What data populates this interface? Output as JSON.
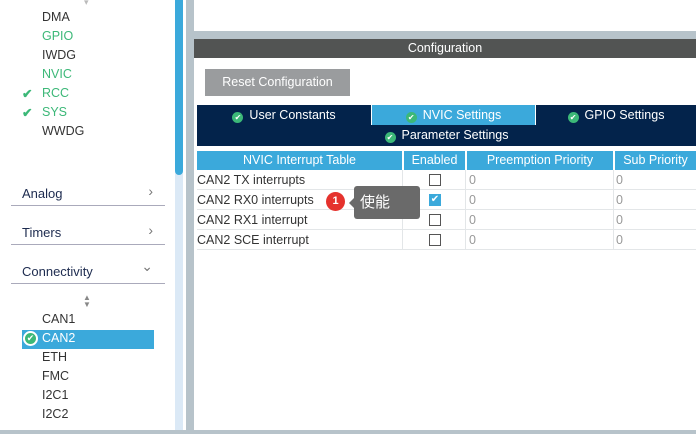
{
  "sidebar": {
    "system_items": [
      {
        "label": "DMA",
        "status": "none"
      },
      {
        "label": "GPIO",
        "status": "configured"
      },
      {
        "label": "IWDG",
        "status": "none"
      },
      {
        "label": "NVIC",
        "status": "configured"
      },
      {
        "label": "RCC",
        "status": "checked"
      },
      {
        "label": "SYS",
        "status": "checked"
      },
      {
        "label": "WWDG",
        "status": "none"
      }
    ],
    "categories": [
      {
        "label": "Analog",
        "icon": "chevron-right-icon",
        "glyph": "›"
      },
      {
        "label": "Timers",
        "icon": "chevron-right-icon",
        "glyph": "›"
      },
      {
        "label": "Connectivity",
        "icon": "chevron-down-icon",
        "glyph": "⌄"
      }
    ],
    "connectivity_items": [
      "CAN1",
      "CAN2",
      "ETH",
      "FMC",
      "I2C1",
      "I2C2"
    ],
    "selected": "CAN2"
  },
  "config": {
    "title": "Configuration",
    "reset_label": "Reset Configuration",
    "tabs": [
      {
        "label": "User Constants",
        "active": false
      },
      {
        "label": "NVIC Settings",
        "active": true
      },
      {
        "label": "GPIO Settings",
        "active": false
      },
      {
        "label": "Parameter Settings",
        "active": false
      }
    ],
    "table": {
      "headers": [
        "NVIC Interrupt Table",
        "Enabled",
        "Preemption Priority",
        "Sub Priority"
      ],
      "rows": [
        {
          "name": "CAN2 TX interrupts",
          "enabled": false,
          "preemption": "0",
          "sub": "0"
        },
        {
          "name": "CAN2 RX0 interrupts",
          "enabled": true,
          "preemption": "0",
          "sub": "0"
        },
        {
          "name": "CAN2 RX1 interrupt",
          "enabled": false,
          "preemption": "0",
          "sub": "0"
        },
        {
          "name": "CAN2 SCE interrupt",
          "enabled": false,
          "preemption": "0",
          "sub": "0"
        }
      ]
    }
  },
  "annotation": {
    "badge": "1",
    "text": "使能"
  },
  "colors": {
    "accent": "#3ba9db",
    "navy": "#03234b",
    "ok": "#3cb878",
    "badge": "#e5322d"
  }
}
